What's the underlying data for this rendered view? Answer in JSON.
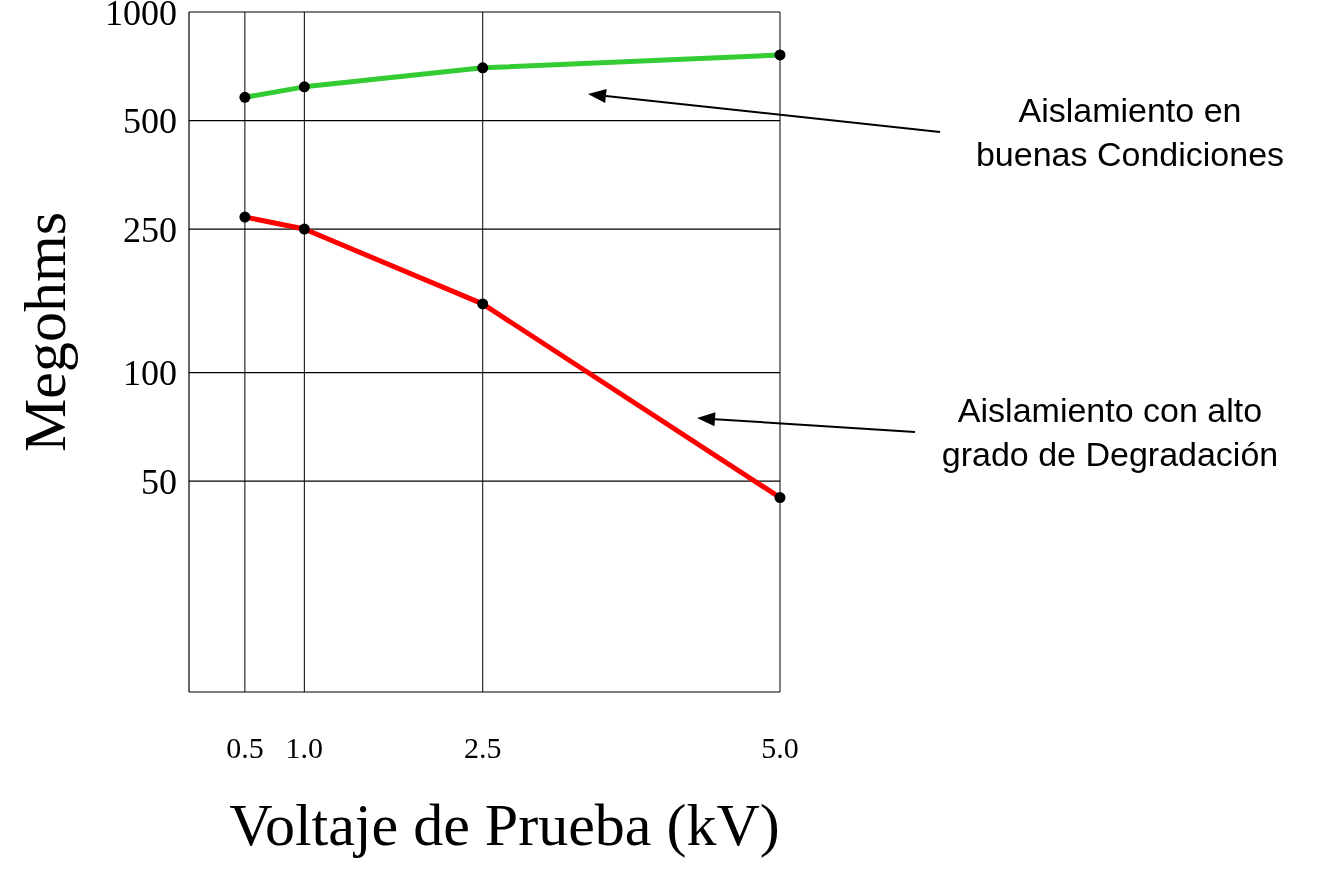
{
  "chart_data": {
    "type": "line",
    "xlabel": "Voltaje de Prueba (kV)",
    "ylabel": "Megohms",
    "x": [
      0.5,
      1.0,
      2.5,
      5.0
    ],
    "series": [
      {
        "color": "#33cc33",
        "values": [
          580,
          620,
          700,
          760
        ]
      },
      {
        "color": "#ff0000",
        "values": [
          270,
          250,
          155,
          45
        ]
      }
    ],
    "xlim": [
      0.03,
      5.0
    ],
    "xticks": [
      0.5,
      {
        "value": 1,
        "label": "1.0"
      },
      2.5,
      {
        "value": 5,
        "label": "5.0"
      }
    ],
    "ylim": [
      13,
      1000
    ],
    "yticks": [
      50,
      100,
      250,
      500,
      1000
    ],
    "log": "y",
    "grid": true,
    "marker": "circle",
    "annotations": [
      "Aislamiento en\nbuenas Condiciones",
      "Aislamiento con alto\ngrado de Degradación"
    ]
  }
}
